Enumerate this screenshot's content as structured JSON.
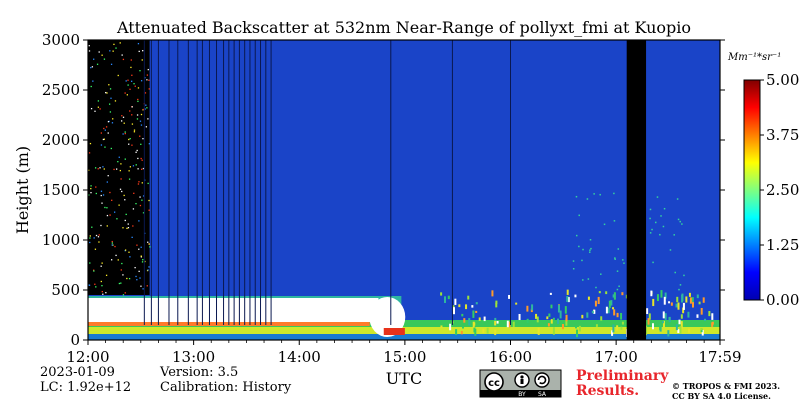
{
  "chart_data": {
    "type": "heatmap",
    "title": "Attenuated Backscatter at 532nm Near-Range of pollyxt_fmi at Kuopio",
    "xlabel": "UTC",
    "ylabel": "Height (m)",
    "x_ticks": [
      "12:00",
      "13:00",
      "14:00",
      "15:00",
      "16:00",
      "17:00",
      "17:59"
    ],
    "y_ticks": [
      0,
      500,
      1000,
      1500,
      2000,
      2500,
      3000
    ],
    "xlim": [
      "12:00",
      "17:59"
    ],
    "ylim": [
      0,
      3000
    ],
    "colorbar": {
      "unit_label": "Mm⁻¹*sr⁻¹",
      "ticks": [
        "0.00",
        "1.25",
        "2.50",
        "3.75",
        "5.00"
      ],
      "range": [
        0,
        5
      ],
      "colormap": "jet"
    },
    "features": {
      "saturated_layer": {
        "from": "12:00",
        "to": "14:58",
        "bottom_m": 80,
        "top_m": 420,
        "value": "saturated (>5)"
      },
      "no_data_gap": {
        "from": "17:06",
        "to": "17:17"
      },
      "noisy_period": {
        "from": "12:00",
        "to": "13:45"
      }
    }
  },
  "meta": {
    "date": "2023-01-09",
    "lc": "LC: 1.92e+12",
    "version": "Version: 3.5",
    "calibration": "Calibration: History"
  },
  "notice": {
    "preliminary_line1": "Preliminary",
    "preliminary_line2": "Results.",
    "copyright_line1": "© TROPOS & FMI 2023.",
    "copyright_line2": "CC BY SA 4.0 License."
  },
  "badge": {
    "cc": "cc",
    "by": "BY",
    "sa": "SA"
  },
  "colors": {
    "background": "#1a44c8",
    "saturated": "#ffffff",
    "gap": "#000000",
    "preliminary": "#e8262c"
  }
}
